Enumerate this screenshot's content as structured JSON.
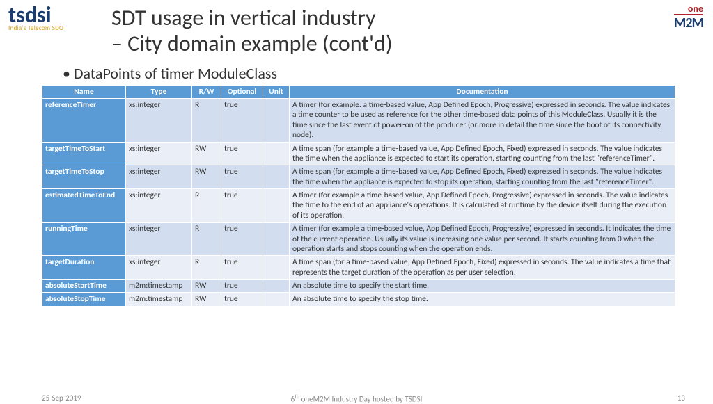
{
  "logos": {
    "left_main": "tsdsi",
    "left_sub": "India's Telecom SDO",
    "right_one": "one",
    "right_m2m": "M2M"
  },
  "title_line1": "SDT usage in vertical industry",
  "title_line2": "– City domain example (cont'd)",
  "subtitle": "DataPoints of timer ModuleClass",
  "table": {
    "headers": [
      "Name",
      "Type",
      "R/W",
      "Optional",
      "Unit",
      "Documentation"
    ],
    "rows": [
      {
        "name": "referenceTimer",
        "type": "xs:integer",
        "rw": "R",
        "opt": "true",
        "unit": "",
        "doc": "A timer (for example. a time-based value, App Defined Epoch, Progressive) expressed in seconds. The value indicates a time counter to be used as reference for the other time-based data points of this ModuleClass. Usually it is the time since the last event of power-on of the producer (or more in detail the time since the boot of its connectivity node)."
      },
      {
        "name": "targetTimeToStart",
        "type": "xs:integer",
        "rw": "RW",
        "opt": "true",
        "unit": "",
        "doc": "A time span (for example a time-based value, App Defined Epoch, Fixed) expressed in seconds. The value indicates the time when the appliance is expected to start its operation, starting counting from the last \"referenceTimer\"."
      },
      {
        "name": "targetTimeToStop",
        "type": "xs:integer",
        "rw": "RW",
        "opt": "true",
        "unit": "",
        "doc": "A time span (for example a time-based value, App Defined Epoch, Fixed) expressed in seconds. The value indicates the time when the appliance is expected to stop its operation, starting counting from the last \"referenceTimer\"."
      },
      {
        "name": "estimatedTimeToEnd",
        "type": "xs:integer",
        "rw": "R",
        "opt": "true",
        "unit": "",
        "doc": "A timer (for example a time-based value, App Defined Epoch, Progressive) expressed in seconds. The value indicates the time to the end of an appliance's operations. It is calculated at runtime by the device itself during the execution of its operation."
      },
      {
        "name": "runningTime",
        "type": "xs:integer",
        "rw": "R",
        "opt": "true",
        "unit": "",
        "doc": "A timer (for example a time-based value, App Defined Epoch, Progressive) expressed in seconds. It indicates the time of the current operation. Usually its value is increasing one value per  second. It starts counting from 0 when the operation starts and stops counting when the operation ends."
      },
      {
        "name": "targetDuration",
        "type": "xs:integer",
        "rw": "R",
        "opt": "true",
        "unit": "",
        "doc": "A time span (for a time-based value, App Defined Epoch, Fixed) expressed in seconds. The value indicates a time that represents the target duration of the operation as per user selection."
      },
      {
        "name": "absoluteStartTime",
        "type": "m2m:timestamp",
        "rw": "RW",
        "opt": "true",
        "unit": "",
        "doc": "An absolute time to specify the start time."
      },
      {
        "name": "absoluteStopTime",
        "type": "m2m:timestamp",
        "rw": "RW",
        "opt": "true",
        "unit": "",
        "doc": "An absolute time to specify the stop time."
      }
    ]
  },
  "footer": {
    "date": "25-Sep-2019",
    "mid_prefix": "6",
    "mid_sup": "th",
    "mid_rest": " oneM2M Industry Day hosted by TSDSI",
    "page": "13"
  }
}
